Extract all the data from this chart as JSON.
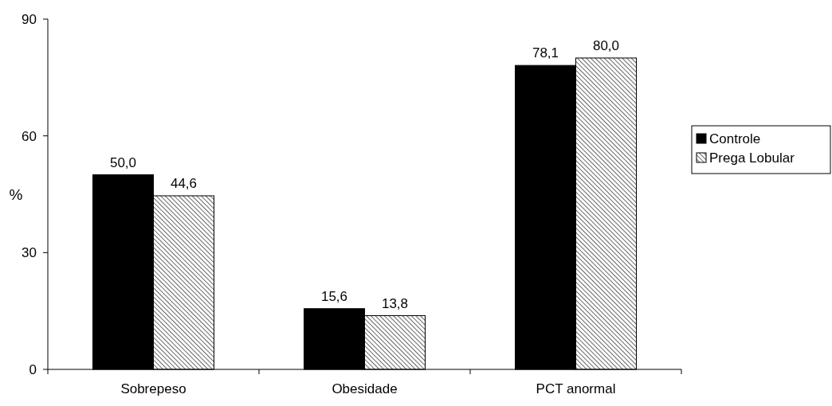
{
  "chart_data": {
    "type": "bar",
    "ylabel": "%",
    "categories": [
      "Sobrepeso",
      "Obesidade",
      "PCT anormal"
    ],
    "series": [
      {
        "name": "Controle",
        "color": "#000000",
        "values": [
          50.0,
          15.6,
          78.1
        ],
        "value_labels": [
          "50,0",
          "15,6",
          "78,1"
        ]
      },
      {
        "name": "Prega Lobular",
        "color": "#000000",
        "values": [
          44.6,
          13.8,
          80.0
        ],
        "value_labels": [
          "44,6",
          "13,8",
          "80,0"
        ]
      }
    ],
    "ylim": [
      0,
      90
    ],
    "yticks": [
      0,
      30,
      60,
      90
    ],
    "grid": false,
    "legend": "right"
  }
}
